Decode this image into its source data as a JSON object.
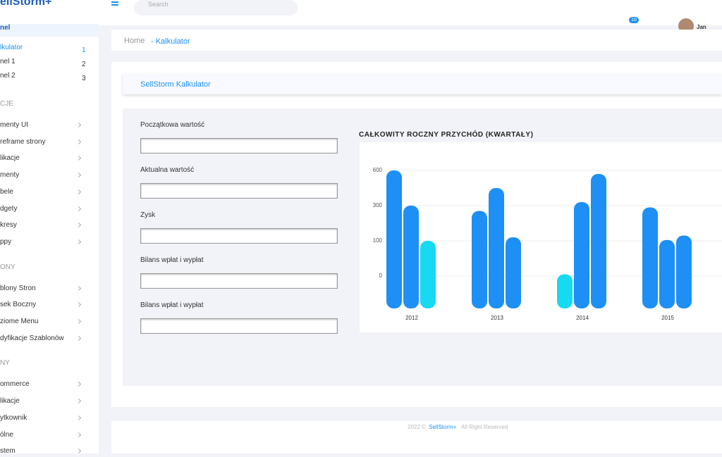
{
  "header": {
    "logo": "ellStorm+",
    "search": "Search",
    "badge": "10",
    "user": "Jan Kowals"
  },
  "sidebar": {
    "top": "nel",
    "pages": [
      {
        "label": "lkulator",
        "num": "1"
      },
      {
        "label": "nel 1",
        "num": "2"
      },
      {
        "label": "nel 2",
        "num": "3"
      }
    ],
    "sections": [
      {
        "title": "CJE",
        "items": [
          "menty UI",
          "reframe strony",
          "likacje",
          "menty",
          "bele",
          "dgety",
          "kresy",
          "ppy"
        ]
      },
      {
        "title": "ONY",
        "items": [
          "blony Stron",
          "sek Boczny",
          "ziome  Menu",
          "dyfikacje Szablonów"
        ]
      },
      {
        "title": "NY",
        "items": [
          "ommerce",
          "likacje",
          "ytkownik",
          "ólne",
          "stem"
        ]
      }
    ]
  },
  "breadcrumb": {
    "home": "Home",
    "current": "- Kalkulator"
  },
  "card": {
    "title": "SellStorm Kalkulator"
  },
  "form": {
    "fields": [
      "Początkowa wartość",
      "Aktualna wartość",
      "Zysk",
      "Bilans wpłat i wypłat",
      "Bilans wpłat i wypłat"
    ]
  },
  "chart_data": {
    "type": "bar",
    "title": "CAŁKOWITY ROCZNY PRZYCHÓD (KWARTAŁY)",
    "categories": [
      "2012",
      "2013",
      "2014",
      "2015"
    ],
    "series": [
      {
        "values": [
          600,
          270,
          5,
          290
        ],
        "colors": [
          "#1e8ff5",
          "#1e8ff5",
          "#17d9f2",
          "#1e8ff5"
        ]
      },
      {
        "values": [
          300,
          450,
          330,
          105
        ],
        "colors": [
          "#1e8ff5",
          "#1e8ff5",
          "#1e8ff5",
          "#1e8ff5"
        ]
      },
      {
        "values": [
          100,
          120,
          570,
          130
        ],
        "colors": [
          "#17d9f2",
          "#1e8ff5",
          "#1e8ff5",
          "#1e8ff5"
        ]
      }
    ],
    "ylim": [
      0,
      600
    ],
    "yticks": [
      0,
      100,
      300,
      600
    ],
    "grid": true
  },
  "footer": {
    "year": "2022 ©",
    "brand": "SellStorm+",
    "rights": "All Right Reserved"
  }
}
